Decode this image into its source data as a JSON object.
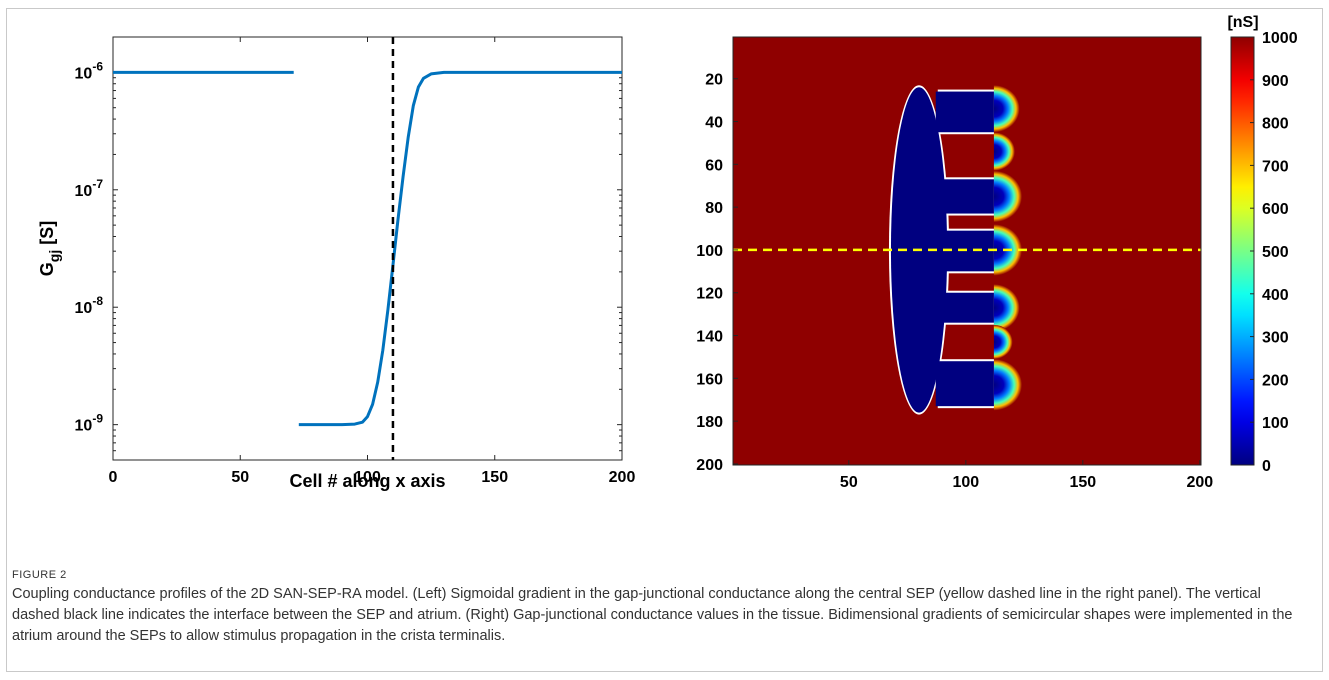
{
  "figure_label": "FIGURE 2",
  "caption": "Coupling conductance profiles of the 2D SAN-SEP-RA model. (Left) Sigmoidal gradient in the gap-junctional conductance along the central SEP (yellow dashed line in the right panel). The vertical dashed black line indicates the interface between the SEP and atrium. (Right) Gap-junctional conductance values in the tissue. Bidimensional gradients of semicircular shapes were implemented in the atrium around the SEPs to allow stimulus propagation in the crista terminalis.",
  "chart_data": [
    {
      "type": "line",
      "panel": "left",
      "xlabel": "Cell # along x axis",
      "ylabel_base": "G",
      "ylabel_sub": "gj",
      "ylabel_unit": " [S]",
      "xlim": [
        0,
        200
      ],
      "ylim": [
        5e-10,
        2e-06
      ],
      "yscale": "log",
      "xticks": [
        0,
        50,
        100,
        150,
        200
      ],
      "yticks": [
        1e-09,
        1e-08,
        1e-07,
        1e-06
      ],
      "yticklabels": [
        "10",
        "10",
        "10",
        "10"
      ],
      "ytickexp": [
        "-9",
        "-8",
        "-7",
        "-6"
      ],
      "grid": false,
      "series": [
        {
          "color": "#0072BD",
          "segments": [
            {
              "x": [
                0,
                71
              ],
              "y": [
                1e-06,
                1e-06
              ]
            },
            {
              "x": [
                73,
                90,
                95,
                98,
                100,
                102,
                104,
                106,
                108,
                110,
                112,
                114,
                116,
                118,
                120,
                122,
                125,
                130,
                140,
                200
              ],
              "y": [
                1e-09,
                1e-09,
                1.01e-09,
                1.05e-09,
                1.17e-09,
                1.49e-09,
                2.3e-09,
                4.3e-09,
                9.5e-09,
                2.3e-08,
                5.6e-08,
                1.3e-07,
                2.8e-07,
                5.2e-07,
                7.5e-07,
                8.9e-07,
                9.7e-07,
                1e-06,
                1e-06,
                1e-06
              ]
            }
          ]
        }
      ],
      "vline": {
        "x": 110,
        "color": "#000000",
        "style": "dashed"
      }
    },
    {
      "type": "heatmap",
      "panel": "right",
      "xlim": [
        1,
        200
      ],
      "ylim": [
        1,
        200
      ],
      "xticks": [
        50,
        100,
        150,
        200
      ],
      "yticks": [
        20,
        40,
        60,
        80,
        100,
        120,
        140,
        160,
        180,
        200
      ],
      "background_value": 1000,
      "regions": {
        "san_ellipse": {
          "cx": 80,
          "cy": 100,
          "rx": 12,
          "ry": 76,
          "cut_x": 90,
          "value": 0
        },
        "sep_bars": [
          {
            "x0": 88,
            "x1": 112,
            "y0": 26,
            "y1": 45,
            "value": 0
          },
          {
            "x0": 88,
            "x1": 112,
            "y0": 67,
            "y1": 83,
            "value": 0
          },
          {
            "x0": 88,
            "x1": 112,
            "y0": 91,
            "y1": 110,
            "value": 0
          },
          {
            "x0": 88,
            "x1": 112,
            "y0": 120,
            "y1": 134,
            "value": 0
          },
          {
            "x0": 88,
            "x1": 112,
            "y0": 152,
            "y1": 173,
            "value": 0
          }
        ],
        "gradient_bumps": [
          {
            "cx": 112,
            "cy": 34,
            "r": 11
          },
          {
            "cx": 112,
            "cy": 54,
            "r": 9
          },
          {
            "cx": 112,
            "cy": 75,
            "r": 12
          },
          {
            "cx": 112,
            "cy": 100,
            "r": 12
          },
          {
            "cx": 112,
            "cy": 127,
            "r": 11
          },
          {
            "cx": 112,
            "cy": 143,
            "r": 8
          },
          {
            "cx": 112,
            "cy": 163,
            "r": 12
          }
        ]
      },
      "hline": {
        "y": 100,
        "color": "#FFFF00",
        "style": "dashed"
      },
      "colorbar": {
        "title": "[nS]",
        "min": 0,
        "max": 1000,
        "ticks": [
          0,
          100,
          200,
          300,
          400,
          500,
          600,
          700,
          800,
          900,
          1000
        ],
        "colormap": "jet"
      }
    }
  ]
}
